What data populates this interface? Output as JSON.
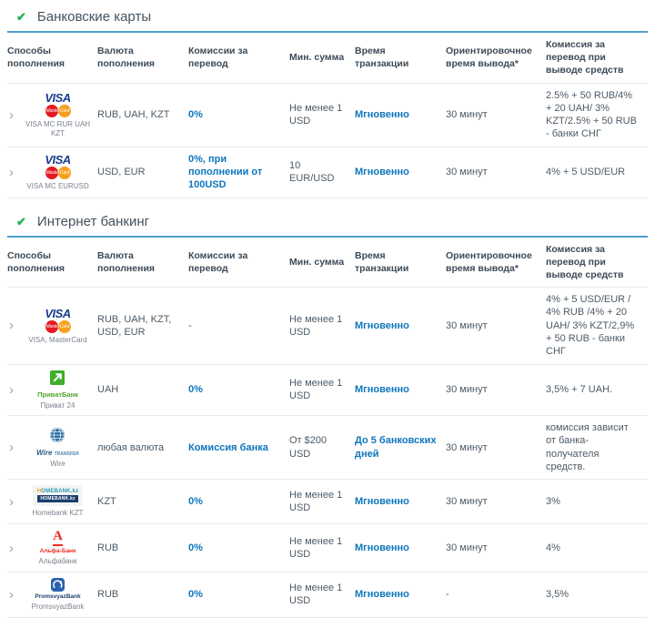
{
  "colors": {
    "accent_blue": "#0d76bb",
    "check_green": "#22b24c",
    "table_top_border_blue": "#4e9dcb",
    "visa_navy": "#1a3c8f",
    "mastercard_red": "#e41b24",
    "mastercard_orange": "#f7a020",
    "privat_green": "#52a529",
    "alfa_red": "#ee2a23",
    "psb_navy": "#1b3f6e"
  },
  "icons": {
    "check": "✔",
    "chevron": "›"
  },
  "logos": {
    "visamc": {
      "visa": "VISA",
      "mastercard": "MasterCard"
    },
    "privat": {
      "word": "ПриватБанк"
    },
    "wire": {
      "word1": "Wire",
      "word2": "TRANSFER"
    },
    "homebank": {
      "line1": "HOMEBANK.kz",
      "line2": "HOMEBANK.kz"
    },
    "alfa": {
      "letter": "А",
      "word": "Альфа-Банк"
    },
    "psb": {
      "word": "PromsvyazBank"
    }
  },
  "sections": [
    {
      "title": "Банковские карты",
      "headers": [
        "Способы пополнения",
        "Валюта пополнения",
        "Комиссии за перевод",
        "Мин. сумма",
        "Время транзакции",
        "Ориентировочное время вывода*",
        "Комиссия за перевод при выводе средств"
      ],
      "rows": [
        {
          "logo": "visamc",
          "caption": "VISA MC RUR UAH KZT",
          "currency": "RUB, UAH, KZT",
          "commission": "0%",
          "commission_muted": false,
          "min_sum": "Не менее 1 USD",
          "transaction_time": "Мгновенно",
          "withdrawal_time": "30 минут",
          "withdrawal_commission": "2.5% + 50 RUB/4% + 20 UAH/ 3% KZT/2.5% + 50 RUB - банки СНГ"
        },
        {
          "logo": "visamc",
          "caption": "VISA MC EURUSD",
          "currency": "USD, EUR",
          "commission": "0%, при пополнении от 100USD",
          "commission_muted": false,
          "min_sum": "10 EUR/USD",
          "transaction_time": "Мгновенно",
          "withdrawal_time": "30 минут",
          "withdrawal_commission": "4% + 5 USD/EUR"
        }
      ]
    },
    {
      "title": "Интернет банкинг",
      "headers": [
        "Способы пополнения",
        "Валюта пополнения",
        "Комиссии за перевод",
        "Мин. сумма",
        "Время транзакции",
        "Ориентировочное время вывода*",
        "Комиссия за перевод при выводе средств"
      ],
      "rows": [
        {
          "logo": "visamc",
          "caption": "VISA, MasterCard",
          "currency": "RUB, UAH, KZT, USD, EUR",
          "commission": "-",
          "commission_muted": true,
          "min_sum": "Не менее 1 USD",
          "transaction_time": "Мгновенно",
          "withdrawal_time": "30 минут",
          "withdrawal_commission": "4% + 5 USD/EUR / 4% RUB /4% + 20 UAH/ 3% KZT/2,9% + 50 RUB - банки СНГ"
        },
        {
          "logo": "privat",
          "caption": "Приват 24",
          "currency": "UAH",
          "commission": "0%",
          "commission_muted": false,
          "min_sum": "Не менее 1 USD",
          "transaction_time": "Мгновенно",
          "withdrawal_time": "30 минут",
          "withdrawal_commission": "3,5% + 7 UAH."
        },
        {
          "logo": "wire",
          "caption": "Wire",
          "currency": "любая валюта",
          "commission": "Комиссия банка",
          "commission_muted": false,
          "min_sum": "От $200 USD",
          "transaction_time": "До 5 банковских дней",
          "withdrawal_time": "30 минут",
          "withdrawal_commission": "комиссия зависит от банка-получателя средств."
        },
        {
          "logo": "homebank",
          "caption": "Homebank KZT",
          "currency": "KZT",
          "commission": "0%",
          "commission_muted": false,
          "min_sum": "Не менее 1 USD",
          "transaction_time": "Мгновенно",
          "withdrawal_time": "30 минут",
          "withdrawal_commission": "3%"
        },
        {
          "logo": "alfa",
          "caption": "Альфабанк",
          "currency": "RUB",
          "commission": "0%",
          "commission_muted": false,
          "min_sum": "Не менее 1 USD",
          "transaction_time": "Мгновенно",
          "withdrawal_time": "30 минут",
          "withdrawal_commission": "4%"
        },
        {
          "logo": "psb",
          "caption": "PromsvyazBank",
          "currency": "RUB",
          "commission": "0%",
          "commission_muted": false,
          "min_sum": "Не менее 1 USD",
          "transaction_time": "Мгновенно",
          "withdrawal_time": "-",
          "withdrawal_commission": "3,5%"
        }
      ]
    }
  ]
}
